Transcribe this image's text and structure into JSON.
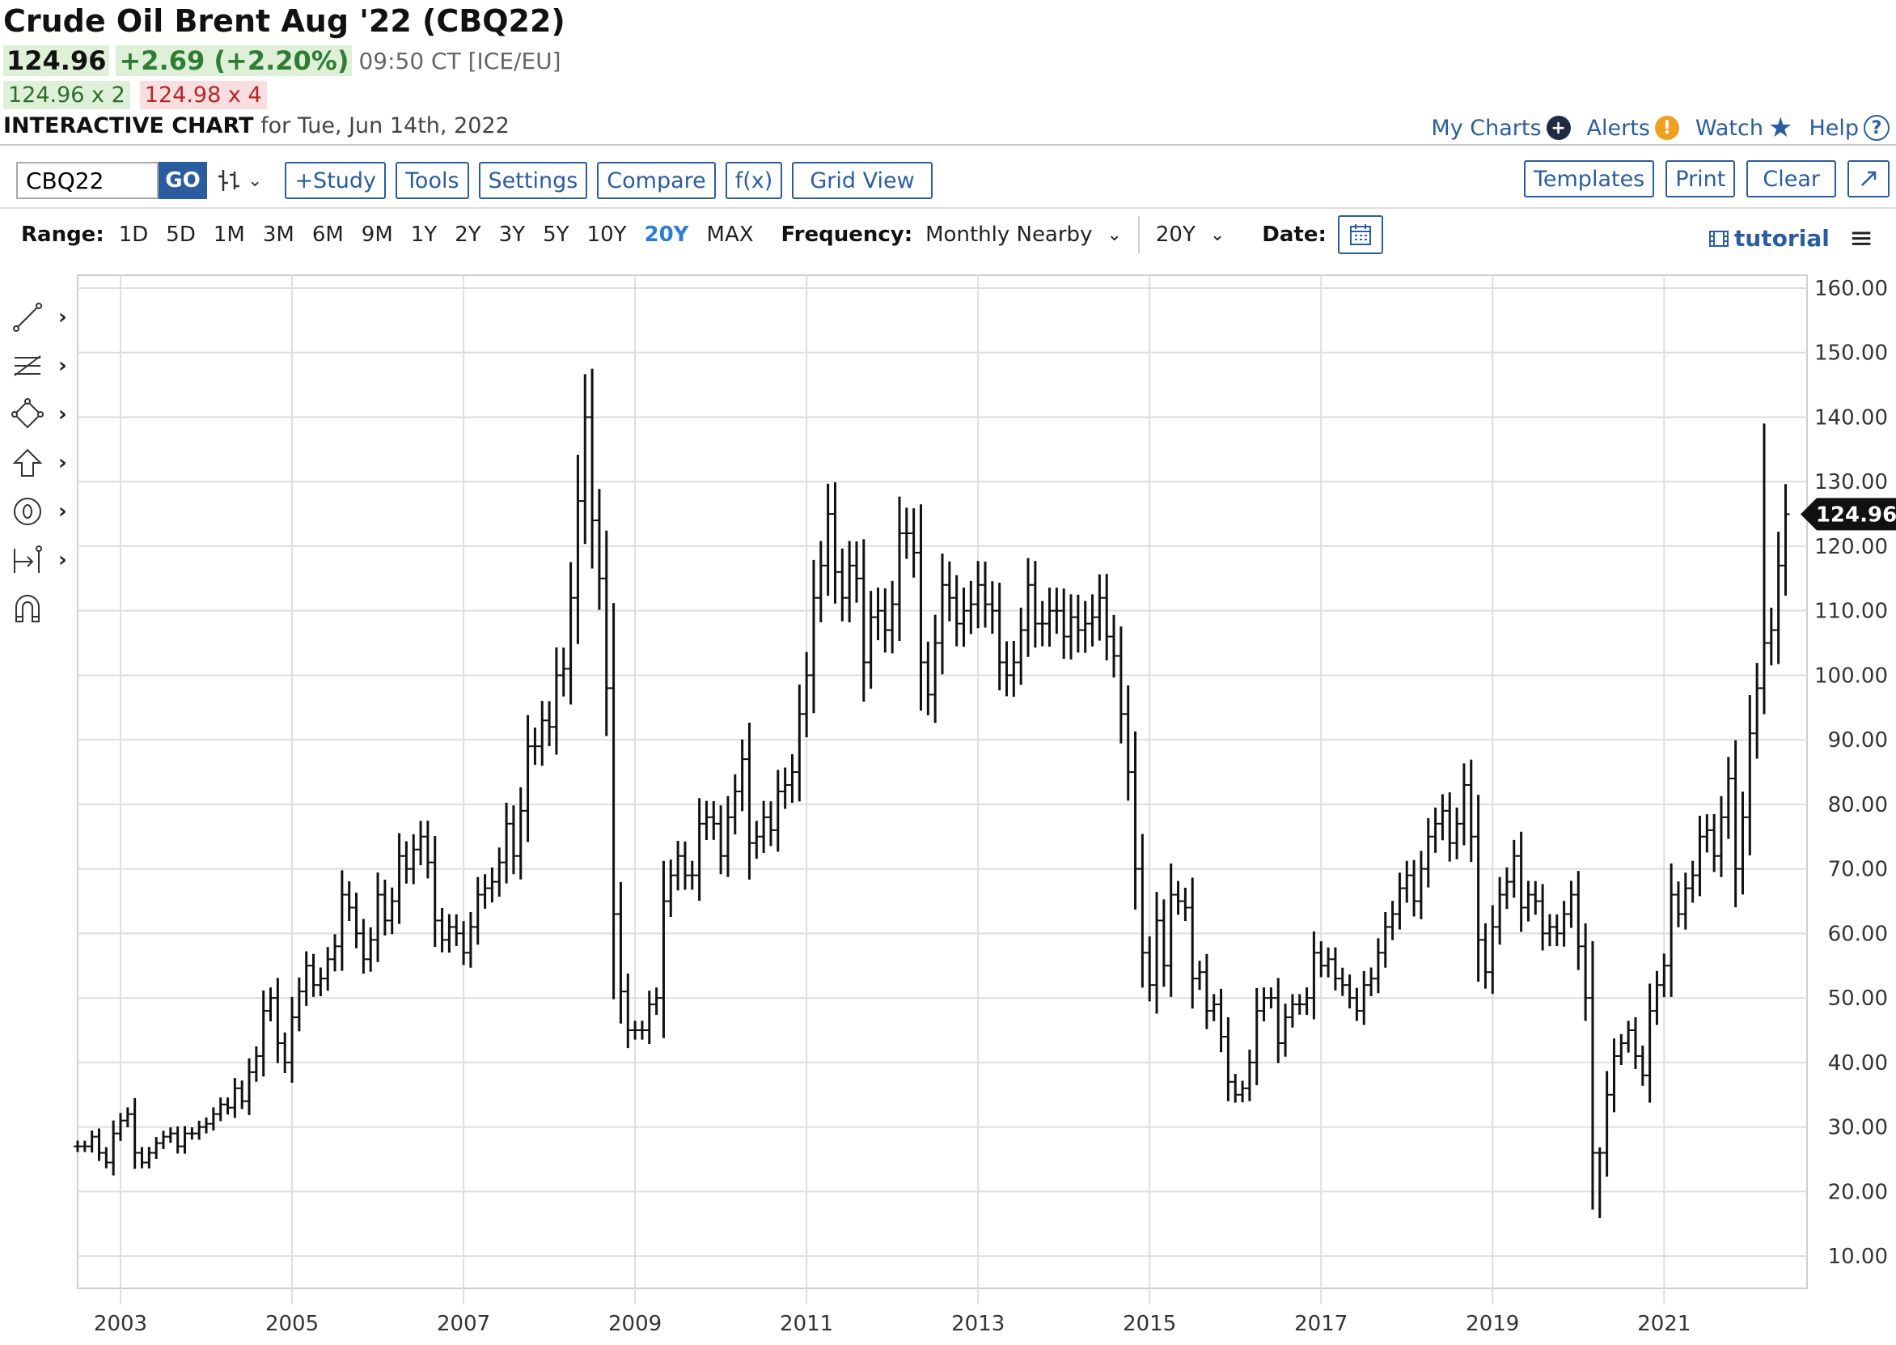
{
  "header": {
    "title": "Crude Oil Brent Aug '22 (CBQ22)",
    "last": "124.96",
    "change": "+2.69 (+2.20%)",
    "quote_time": "09:50 CT [ICE/EU]",
    "bid": "124.96 x 2",
    "ask": "124.98 x 4",
    "chart_label": "INTERACTIVE CHART",
    "chart_date": "for Tue, Jun 14th, 2022"
  },
  "links": {
    "my_charts": "My Charts",
    "alerts": "Alerts",
    "watch": "Watch",
    "help": "Help"
  },
  "toolbar": {
    "symbol": "CBQ22",
    "go": "GO",
    "study": "+Study",
    "tools": "Tools",
    "settings": "Settings",
    "compare": "Compare",
    "fx": "f(x)",
    "grid_view": "Grid View",
    "templates": "Templates",
    "print": "Print",
    "clear": "Clear"
  },
  "range": {
    "label": "Range:",
    "options": [
      "1D",
      "5D",
      "1M",
      "3M",
      "6M",
      "9M",
      "1Y",
      "2Y",
      "3Y",
      "5Y",
      "10Y",
      "20Y",
      "MAX"
    ],
    "selected": "20Y",
    "frequency_label": "Frequency:",
    "frequency_value": "Monthly Nearby",
    "period_value": "20Y",
    "date_label": "Date:",
    "tutorial": "tutorial"
  },
  "colors": {
    "accent": "#2a5d9f",
    "active_range": "#2a7fd4",
    "up": "#2e7d32",
    "down": "#b02a2a"
  },
  "chart_data": {
    "type": "ohlc",
    "frequency": "monthly",
    "ylim": [
      5,
      162
    ],
    "yticks": [
      "10.00",
      "20.00",
      "30.00",
      "40.00",
      "50.00",
      "60.00",
      "70.00",
      "80.00",
      "90.00",
      "100.00",
      "110.00",
      "120.00",
      "130.00",
      "140.00",
      "150.00",
      "160.00"
    ],
    "xticks": [
      "2003",
      "2005",
      "2007",
      "2009",
      "2011",
      "2013",
      "2015",
      "2017",
      "2019",
      "2021"
    ],
    "last_price_label": "124.96",
    "grid": true,
    "series": [
      {
        "date": "2002-07",
        "close": 27
      },
      {
        "date": "2002-08",
        "close": 27
      },
      {
        "date": "2002-09",
        "close": 28.5
      },
      {
        "date": "2002-10",
        "close": 26
      },
      {
        "date": "2002-11",
        "close": 24.5
      },
      {
        "date": "2002-12",
        "close": 29
      },
      {
        "date": "2003-01",
        "close": 31
      },
      {
        "date": "2003-02",
        "close": 32
      },
      {
        "date": "2003-03",
        "close": 26
      },
      {
        "date": "2003-04",
        "close": 24.5
      },
      {
        "date": "2003-05",
        "close": 26
      },
      {
        "date": "2003-06",
        "close": 27.5
      },
      {
        "date": "2003-07",
        "close": 28.5
      },
      {
        "date": "2003-08",
        "close": 29
      },
      {
        "date": "2003-09",
        "close": 27
      },
      {
        "date": "2003-10",
        "close": 29
      },
      {
        "date": "2003-11",
        "close": 29
      },
      {
        "date": "2003-12",
        "close": 30
      },
      {
        "date": "2004-01",
        "close": 30.5
      },
      {
        "date": "2004-02",
        "close": 32
      },
      {
        "date": "2004-03",
        "close": 33.5
      },
      {
        "date": "2004-04",
        "close": 33
      },
      {
        "date": "2004-05",
        "close": 36
      },
      {
        "date": "2004-06",
        "close": 34
      },
      {
        "date": "2004-07",
        "close": 38.5
      },
      {
        "date": "2004-08",
        "close": 41
      },
      {
        "date": "2004-09",
        "close": 48
      },
      {
        "date": "2004-10",
        "close": 50
      },
      {
        "date": "2004-11",
        "close": 43
      },
      {
        "date": "2004-12",
        "close": 40
      },
      {
        "date": "2005-01",
        "close": 47
      },
      {
        "date": "2005-02",
        "close": 51
      },
      {
        "date": "2005-03",
        "close": 55
      },
      {
        "date": "2005-04",
        "close": 52
      },
      {
        "date": "2005-05",
        "close": 53
      },
      {
        "date": "2005-06",
        "close": 56
      },
      {
        "date": "2005-07",
        "close": 58
      },
      {
        "date": "2005-08",
        "close": 66
      },
      {
        "date": "2005-09",
        "close": 64
      },
      {
        "date": "2005-10",
        "close": 60
      },
      {
        "date": "2005-11",
        "close": 56
      },
      {
        "date": "2005-12",
        "close": 59
      },
      {
        "date": "2006-01",
        "close": 66
      },
      {
        "date": "2006-02",
        "close": 62
      },
      {
        "date": "2006-03",
        "close": 65
      },
      {
        "date": "2006-04",
        "close": 72
      },
      {
        "date": "2006-05",
        "close": 70
      },
      {
        "date": "2006-06",
        "close": 73
      },
      {
        "date": "2006-07",
        "close": 75
      },
      {
        "date": "2006-08",
        "close": 71
      },
      {
        "date": "2006-09",
        "close": 62
      },
      {
        "date": "2006-10",
        "close": 59
      },
      {
        "date": "2006-11",
        "close": 61
      },
      {
        "date": "2006-12",
        "close": 60
      },
      {
        "date": "2007-01",
        "close": 57
      },
      {
        "date": "2007-02",
        "close": 61
      },
      {
        "date": "2007-03",
        "close": 66
      },
      {
        "date": "2007-04",
        "close": 67
      },
      {
        "date": "2007-05",
        "close": 68
      },
      {
        "date": "2007-06",
        "close": 71
      },
      {
        "date": "2007-07",
        "close": 77
      },
      {
        "date": "2007-08",
        "close": 72
      },
      {
        "date": "2007-09",
        "close": 79
      },
      {
        "date": "2007-10",
        "close": 89
      },
      {
        "date": "2007-11",
        "close": 89
      },
      {
        "date": "2007-12",
        "close": 93
      },
      {
        "date": "2008-01",
        "close": 92
      },
      {
        "date": "2008-02",
        "close": 100
      },
      {
        "date": "2008-03",
        "close": 101
      },
      {
        "date": "2008-04",
        "close": 112
      },
      {
        "date": "2008-05",
        "close": 127
      },
      {
        "date": "2008-06",
        "close": 140
      },
      {
        "date": "2008-07",
        "close": 124
      },
      {
        "date": "2008-08",
        "close": 115
      },
      {
        "date": "2008-09",
        "close": 98
      },
      {
        "date": "2008-10",
        "close": 63
      },
      {
        "date": "2008-11",
        "close": 51
      },
      {
        "date": "2008-12",
        "close": 45
      },
      {
        "date": "2009-01",
        "close": 45
      },
      {
        "date": "2009-02",
        "close": 45
      },
      {
        "date": "2009-03",
        "close": 49
      },
      {
        "date": "2009-04",
        "close": 50
      },
      {
        "date": "2009-05",
        "close": 65
      },
      {
        "date": "2009-06",
        "close": 69
      },
      {
        "date": "2009-07",
        "close": 72
      },
      {
        "date": "2009-08",
        "close": 69
      },
      {
        "date": "2009-09",
        "close": 69
      },
      {
        "date": "2009-10",
        "close": 77
      },
      {
        "date": "2009-11",
        "close": 78
      },
      {
        "date": "2009-12",
        "close": 77
      },
      {
        "date": "2010-01",
        "close": 72
      },
      {
        "date": "2010-02",
        "close": 78
      },
      {
        "date": "2010-03",
        "close": 82
      },
      {
        "date": "2010-04",
        "close": 87
      },
      {
        "date": "2010-05",
        "close": 74
      },
      {
        "date": "2010-06",
        "close": 75
      },
      {
        "date": "2010-07",
        "close": 78
      },
      {
        "date": "2010-08",
        "close": 76
      },
      {
        "date": "2010-09",
        "close": 82
      },
      {
        "date": "2010-10",
        "close": 83
      },
      {
        "date": "2010-11",
        "close": 85
      },
      {
        "date": "2010-12",
        "close": 94
      },
      {
        "date": "2011-01",
        "close": 100
      },
      {
        "date": "2011-02",
        "close": 112
      },
      {
        "date": "2011-03",
        "close": 117
      },
      {
        "date": "2011-04",
        "close": 125
      },
      {
        "date": "2011-05",
        "close": 116
      },
      {
        "date": "2011-06",
        "close": 112
      },
      {
        "date": "2011-07",
        "close": 117
      },
      {
        "date": "2011-08",
        "close": 115
      },
      {
        "date": "2011-09",
        "close": 102
      },
      {
        "date": "2011-10",
        "close": 109
      },
      {
        "date": "2011-11",
        "close": 110
      },
      {
        "date": "2011-12",
        "close": 107
      },
      {
        "date": "2012-01",
        "close": 111
      },
      {
        "date": "2012-02",
        "close": 122
      },
      {
        "date": "2012-03",
        "close": 122
      },
      {
        "date": "2012-04",
        "close": 119
      },
      {
        "date": "2012-05",
        "close": 102
      },
      {
        "date": "2012-06",
        "close": 97
      },
      {
        "date": "2012-07",
        "close": 105
      },
      {
        "date": "2012-08",
        "close": 114
      },
      {
        "date": "2012-09",
        "close": 112
      },
      {
        "date": "2012-10",
        "close": 108
      },
      {
        "date": "2012-11",
        "close": 110
      },
      {
        "date": "2012-12",
        "close": 111
      },
      {
        "date": "2013-01",
        "close": 114
      },
      {
        "date": "2013-02",
        "close": 111
      },
      {
        "date": "2013-03",
        "close": 110
      },
      {
        "date": "2013-04",
        "close": 102
      },
      {
        "date": "2013-05",
        "close": 100
      },
      {
        "date": "2013-06",
        "close": 102
      },
      {
        "date": "2013-07",
        "close": 107
      },
      {
        "date": "2013-08",
        "close": 114
      },
      {
        "date": "2013-09",
        "close": 108
      },
      {
        "date": "2013-10",
        "close": 108
      },
      {
        "date": "2013-11",
        "close": 110
      },
      {
        "date": "2013-12",
        "close": 110
      },
      {
        "date": "2014-01",
        "close": 106
      },
      {
        "date": "2014-02",
        "close": 109
      },
      {
        "date": "2014-03",
        "close": 107
      },
      {
        "date": "2014-04",
        "close": 108
      },
      {
        "date": "2014-05",
        "close": 109
      },
      {
        "date": "2014-06",
        "close": 112
      },
      {
        "date": "2014-07",
        "close": 106
      },
      {
        "date": "2014-08",
        "close": 103
      },
      {
        "date": "2014-09",
        "close": 94
      },
      {
        "date": "2014-10",
        "close": 85
      },
      {
        "date": "2014-11",
        "close": 70
      },
      {
        "date": "2014-12",
        "close": 57
      },
      {
        "date": "2015-01",
        "close": 52
      },
      {
        "date": "2015-02",
        "close": 62
      },
      {
        "date": "2015-03",
        "close": 55
      },
      {
        "date": "2015-04",
        "close": 66
      },
      {
        "date": "2015-05",
        "close": 65
      },
      {
        "date": "2015-06",
        "close": 64
      },
      {
        "date": "2015-07",
        "close": 53
      },
      {
        "date": "2015-08",
        "close": 54
      },
      {
        "date": "2015-09",
        "close": 48
      },
      {
        "date": "2015-10",
        "close": 49
      },
      {
        "date": "2015-11",
        "close": 44
      },
      {
        "date": "2015-12",
        "close": 37
      },
      {
        "date": "2016-01",
        "close": 35
      },
      {
        "date": "2016-02",
        "close": 36
      },
      {
        "date": "2016-03",
        "close": 40
      },
      {
        "date": "2016-04",
        "close": 48
      },
      {
        "date": "2016-05",
        "close": 50
      },
      {
        "date": "2016-06",
        "close": 50
      },
      {
        "date": "2016-07",
        "close": 43
      },
      {
        "date": "2016-08",
        "close": 47
      },
      {
        "date": "2016-09",
        "close": 49
      },
      {
        "date": "2016-10",
        "close": 49
      },
      {
        "date": "2016-11",
        "close": 50
      },
      {
        "date": "2016-12",
        "close": 57
      },
      {
        "date": "2017-01",
        "close": 55
      },
      {
        "date": "2017-02",
        "close": 56
      },
      {
        "date": "2017-03",
        "close": 53
      },
      {
        "date": "2017-04",
        "close": 52
      },
      {
        "date": "2017-05",
        "close": 50
      },
      {
        "date": "2017-06",
        "close": 48
      },
      {
        "date": "2017-07",
        "close": 52
      },
      {
        "date": "2017-08",
        "close": 53
      },
      {
        "date": "2017-09",
        "close": 57
      },
      {
        "date": "2017-10",
        "close": 61
      },
      {
        "date": "2017-11",
        "close": 63
      },
      {
        "date": "2017-12",
        "close": 67
      },
      {
        "date": "2018-01",
        "close": 69
      },
      {
        "date": "2018-02",
        "close": 65
      },
      {
        "date": "2018-03",
        "close": 70
      },
      {
        "date": "2018-04",
        "close": 75
      },
      {
        "date": "2018-05",
        "close": 77
      },
      {
        "date": "2018-06",
        "close": 79
      },
      {
        "date": "2018-07",
        "close": 74
      },
      {
        "date": "2018-08",
        "close": 77
      },
      {
        "date": "2018-09",
        "close": 83
      },
      {
        "date": "2018-10",
        "close": 75
      },
      {
        "date": "2018-11",
        "close": 59
      },
      {
        "date": "2018-12",
        "close": 54
      },
      {
        "date": "2019-01",
        "close": 61
      },
      {
        "date": "2019-02",
        "close": 66
      },
      {
        "date": "2019-03",
        "close": 68
      },
      {
        "date": "2019-04",
        "close": 72
      },
      {
        "date": "2019-05",
        "close": 64
      },
      {
        "date": "2019-06",
        "close": 66
      },
      {
        "date": "2019-07",
        "close": 65
      },
      {
        "date": "2019-08",
        "close": 60
      },
      {
        "date": "2019-09",
        "close": 61
      },
      {
        "date": "2019-10",
        "close": 60
      },
      {
        "date": "2019-11",
        "close": 63
      },
      {
        "date": "2019-12",
        "close": 66
      },
      {
        "date": "2020-01",
        "close": 58
      },
      {
        "date": "2020-02",
        "close": 50
      },
      {
        "date": "2020-03",
        "close": 26
      },
      {
        "date": "2020-04",
        "close": 26
      },
      {
        "date": "2020-05",
        "close": 35
      },
      {
        "date": "2020-06",
        "close": 41
      },
      {
        "date": "2020-07",
        "close": 43
      },
      {
        "date": "2020-08",
        "close": 45
      },
      {
        "date": "2020-09",
        "close": 41
      },
      {
        "date": "2020-10",
        "close": 38
      },
      {
        "date": "2020-11",
        "close": 48
      },
      {
        "date": "2020-12",
        "close": 52
      },
      {
        "date": "2021-01",
        "close": 55
      },
      {
        "date": "2021-02",
        "close": 66
      },
      {
        "date": "2021-03",
        "close": 63
      },
      {
        "date": "2021-04",
        "close": 67
      },
      {
        "date": "2021-05",
        "close": 69
      },
      {
        "date": "2021-06",
        "close": 75
      },
      {
        "date": "2021-07",
        "close": 76
      },
      {
        "date": "2021-08",
        "close": 72
      },
      {
        "date": "2021-09",
        "close": 78
      },
      {
        "date": "2021-10",
        "close": 84
      },
      {
        "date": "2021-11",
        "close": 70
      },
      {
        "date": "2021-12",
        "close": 78
      },
      {
        "date": "2022-01",
        "close": 91
      },
      {
        "date": "2022-02",
        "close": 98
      },
      {
        "date": "2022-03",
        "close": 105
      },
      {
        "date": "2022-04",
        "close": 107
      },
      {
        "date": "2022-05",
        "close": 117
      },
      {
        "date": "2022-06",
        "close": 124.96
      }
    ],
    "extremes": {
      "high_2008": 147.5,
      "low_2020": 15.9,
      "high_2022": 139
    }
  }
}
